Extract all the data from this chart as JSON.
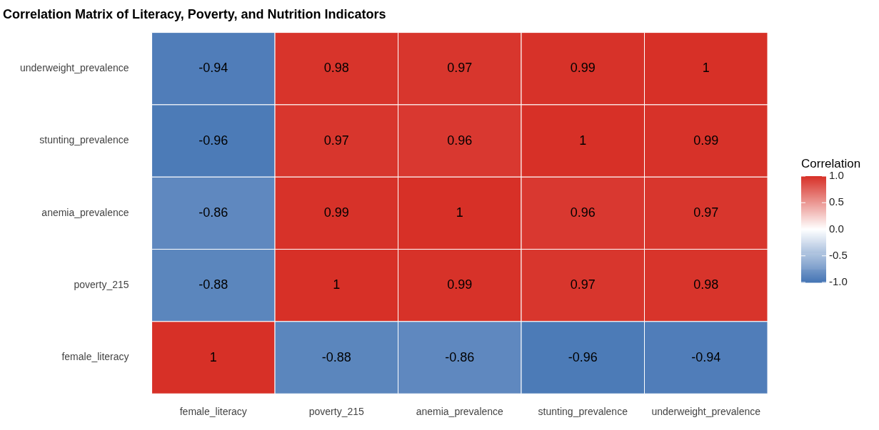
{
  "chart_data": {
    "type": "heatmap",
    "title": "Correlation Matrix of Literacy, Poverty, and Nutrition Indicators",
    "clabel": "Correlation",
    "categories": [
      "female_literacy",
      "poverty_215",
      "anemia_prevalence",
      "stunting_prevalence",
      "underweight_prevalence"
    ],
    "y_categories": [
      "underweight_prevalence",
      "stunting_prevalence",
      "anemia_prevalence",
      "poverty_215",
      "female_literacy"
    ],
    "cells": [
      [
        -0.94,
        0.98,
        0.97,
        0.99,
        1
      ],
      [
        -0.96,
        0.97,
        0.96,
        1,
        0.99
      ],
      [
        -0.86,
        0.99,
        1,
        0.96,
        0.97
      ],
      [
        -0.88,
        1,
        0.99,
        0.97,
        0.98
      ],
      [
        1,
        -0.88,
        -0.86,
        -0.96,
        -0.94
      ]
    ],
    "colors": [
      "#4575b4",
      "#ffffff",
      "#d73027"
    ],
    "clim": [
      -1,
      1
    ],
    "cticks": [
      {
        "value": -1,
        "label": "-1.0"
      },
      {
        "value": -0.5,
        "label": "-0.5"
      },
      {
        "value": 0,
        "label": "0.0"
      },
      {
        "value": 0.5,
        "label": "0.5"
      },
      {
        "value": 1,
        "label": "1.0"
      }
    ],
    "data_labels": true
  }
}
